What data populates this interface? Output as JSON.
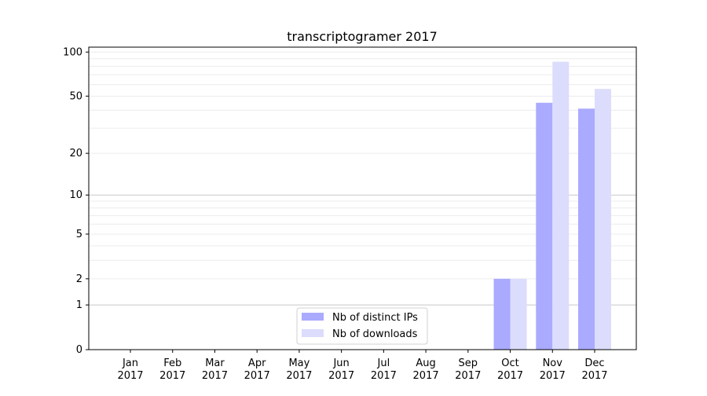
{
  "chart_data": {
    "type": "bar",
    "title": "transcriptogramer 2017",
    "xlabel": "",
    "ylabel": "",
    "yscale": "log10(1+y)",
    "ylim": [
      0,
      108
    ],
    "yticks": [
      0,
      1,
      2,
      5,
      10,
      20,
      50,
      100
    ],
    "grid": true,
    "legend_position": "bottom-center",
    "categories": [
      "Jan\n2017",
      "Feb\n2017",
      "Mar\n2017",
      "Apr\n2017",
      "May\n2017",
      "Jun\n2017",
      "Jul\n2017",
      "Aug\n2017",
      "Sep\n2017",
      "Oct\n2017",
      "Nov\n2017",
      "Dec\n2017"
    ],
    "series": [
      {
        "name": "Nb of distinct IPs",
        "color": "#aaaaff",
        "values": [
          0,
          0,
          0,
          0,
          0,
          0,
          0,
          0,
          0,
          2,
          45,
          41
        ]
      },
      {
        "name": "Nb of downloads",
        "color": "#dcdcfc",
        "values": [
          0,
          0,
          0,
          0,
          0,
          0,
          0,
          0,
          0,
          2,
          86,
          56
        ]
      }
    ]
  }
}
